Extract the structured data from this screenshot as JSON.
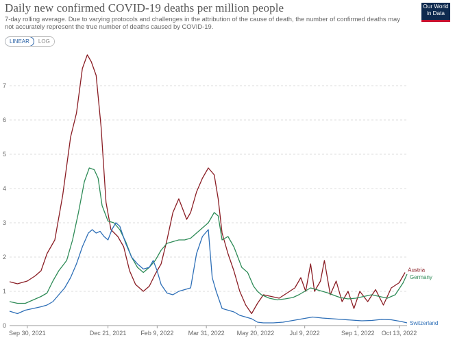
{
  "header": {
    "title": "Daily new confirmed COVID-19 deaths per million people",
    "subtitle": "7-day rolling average. Due to varying protocols and challenges in the attribution of the cause of death, the number of confirmed deaths may not accurately represent the true number of deaths caused by COVID-19.",
    "logo_line1": "Our World",
    "logo_line2": "in Data"
  },
  "controls": {
    "linear_label": "LINEAR",
    "log_label": "LOG",
    "active": "LINEAR"
  },
  "chart_data": {
    "type": "line",
    "title": "Daily new confirmed COVID-19 deaths per million people",
    "xlabel": "",
    "ylabel": "",
    "ylim": [
      0,
      8
    ],
    "yticks": [
      0,
      1,
      2,
      3,
      4,
      5,
      6,
      7
    ],
    "xticks": [
      "Sep 30, 2021",
      "Dec 21, 2021",
      "Feb 9, 2022",
      "Mar 31, 2022",
      "May 20, 2022",
      "Jul 9, 2022",
      "Sep 1, 2022",
      "Oct 13, 2022"
    ],
    "xtick_days": [
      0,
      82,
      132,
      182,
      232,
      282,
      336,
      378
    ],
    "xlim": [
      -18,
      386
    ],
    "grid": "horizontal dashed",
    "series": [
      {
        "name": "Austria",
        "color": "#8a1d24",
        "points": [
          [
            -18,
            1.28
          ],
          [
            -10,
            1.22
          ],
          [
            0,
            1.3
          ],
          [
            8,
            1.45
          ],
          [
            14,
            1.6
          ],
          [
            20,
            2.1
          ],
          [
            28,
            2.5
          ],
          [
            36,
            3.8
          ],
          [
            44,
            5.5
          ],
          [
            50,
            6.2
          ],
          [
            56,
            7.5
          ],
          [
            61,
            7.9
          ],
          [
            65,
            7.7
          ],
          [
            70,
            7.3
          ],
          [
            75,
            5.8
          ],
          [
            80,
            3.6
          ],
          [
            85,
            2.8
          ],
          [
            92,
            2.6
          ],
          [
            98,
            2.3
          ],
          [
            104,
            1.6
          ],
          [
            110,
            1.2
          ],
          [
            118,
            1.0
          ],
          [
            124,
            1.15
          ],
          [
            130,
            1.5
          ],
          [
            136,
            1.8
          ],
          [
            142,
            2.5
          ],
          [
            148,
            3.3
          ],
          [
            154,
            3.7
          ],
          [
            158,
            3.4
          ],
          [
            162,
            3.1
          ],
          [
            166,
            3.3
          ],
          [
            172,
            3.9
          ],
          [
            178,
            4.3
          ],
          [
            184,
            4.6
          ],
          [
            190,
            4.4
          ],
          [
            194,
            3.7
          ],
          [
            198,
            2.7
          ],
          [
            204,
            2.1
          ],
          [
            210,
            1.6
          ],
          [
            216,
            1.0
          ],
          [
            222,
            0.6
          ],
          [
            228,
            0.35
          ],
          [
            234,
            0.65
          ],
          [
            240,
            0.9
          ],
          [
            248,
            0.85
          ],
          [
            256,
            0.8
          ],
          [
            264,
            0.95
          ],
          [
            272,
            1.1
          ],
          [
            278,
            1.4
          ],
          [
            283,
            1.0
          ],
          [
            288,
            1.8
          ],
          [
            292,
            1.0
          ],
          [
            298,
            1.3
          ],
          [
            302,
            1.9
          ],
          [
            308,
            0.9
          ],
          [
            314,
            1.3
          ],
          [
            320,
            0.7
          ],
          [
            326,
            1.0
          ],
          [
            332,
            0.5
          ],
          [
            338,
            1.0
          ],
          [
            346,
            0.7
          ],
          [
            354,
            1.05
          ],
          [
            362,
            0.6
          ],
          [
            370,
            1.1
          ],
          [
            378,
            1.25
          ],
          [
            384,
            1.55
          ]
        ]
      },
      {
        "name": "Germany",
        "color": "#2e8b57",
        "points": [
          [
            -18,
            0.7
          ],
          [
            -10,
            0.65
          ],
          [
            -2,
            0.65
          ],
          [
            6,
            0.75
          ],
          [
            14,
            0.85
          ],
          [
            20,
            0.95
          ],
          [
            26,
            1.3
          ],
          [
            32,
            1.6
          ],
          [
            40,
            1.9
          ],
          [
            46,
            2.5
          ],
          [
            52,
            3.3
          ],
          [
            58,
            4.2
          ],
          [
            63,
            4.6
          ],
          [
            68,
            4.55
          ],
          [
            72,
            4.3
          ],
          [
            76,
            3.5
          ],
          [
            82,
            3.05
          ],
          [
            88,
            3.0
          ],
          [
            94,
            2.8
          ],
          [
            100,
            2.45
          ],
          [
            106,
            2.0
          ],
          [
            112,
            1.7
          ],
          [
            118,
            1.55
          ],
          [
            124,
            1.7
          ],
          [
            130,
            1.9
          ],
          [
            136,
            2.2
          ],
          [
            142,
            2.4
          ],
          [
            148,
            2.45
          ],
          [
            154,
            2.5
          ],
          [
            160,
            2.5
          ],
          [
            166,
            2.55
          ],
          [
            172,
            2.7
          ],
          [
            178,
            2.85
          ],
          [
            184,
            3.0
          ],
          [
            190,
            3.3
          ],
          [
            194,
            3.2
          ],
          [
            198,
            2.5
          ],
          [
            204,
            2.6
          ],
          [
            210,
            2.3
          ],
          [
            214,
            2.0
          ],
          [
            218,
            1.7
          ],
          [
            224,
            1.55
          ],
          [
            230,
            1.15
          ],
          [
            234,
            1.0
          ],
          [
            238,
            0.9
          ],
          [
            246,
            0.8
          ],
          [
            254,
            0.75
          ],
          [
            262,
            0.78
          ],
          [
            270,
            0.82
          ],
          [
            276,
            0.9
          ],
          [
            282,
            1.0
          ],
          [
            288,
            1.1
          ],
          [
            294,
            1.05
          ],
          [
            300,
            1.0
          ],
          [
            306,
            0.95
          ],
          [
            312,
            0.88
          ],
          [
            318,
            0.82
          ],
          [
            326,
            0.78
          ],
          [
            334,
            0.8
          ],
          [
            342,
            0.85
          ],
          [
            350,
            0.9
          ],
          [
            358,
            0.85
          ],
          [
            366,
            0.8
          ],
          [
            374,
            0.9
          ],
          [
            382,
            1.25
          ],
          [
            386,
            1.5
          ]
        ]
      },
      {
        "name": "Switzerland",
        "color": "#2e6fb7",
        "points": [
          [
            -18,
            0.42
          ],
          [
            -10,
            0.35
          ],
          [
            -2,
            0.45
          ],
          [
            6,
            0.5
          ],
          [
            14,
            0.55
          ],
          [
            20,
            0.6
          ],
          [
            26,
            0.7
          ],
          [
            32,
            0.9
          ],
          [
            38,
            1.1
          ],
          [
            44,
            1.4
          ],
          [
            50,
            1.8
          ],
          [
            56,
            2.3
          ],
          [
            62,
            2.7
          ],
          [
            66,
            2.8
          ],
          [
            70,
            2.7
          ],
          [
            74,
            2.75
          ],
          [
            78,
            2.6
          ],
          [
            82,
            2.5
          ],
          [
            86,
            2.8
          ],
          [
            90,
            3.0
          ],
          [
            94,
            2.9
          ],
          [
            100,
            2.4
          ],
          [
            106,
            2.0
          ],
          [
            112,
            1.8
          ],
          [
            118,
            1.65
          ],
          [
            124,
            1.7
          ],
          [
            128,
            1.9
          ],
          [
            132,
            1.6
          ],
          [
            136,
            1.2
          ],
          [
            142,
            0.95
          ],
          [
            148,
            0.9
          ],
          [
            154,
            1.0
          ],
          [
            160,
            1.05
          ],
          [
            166,
            1.1
          ],
          [
            172,
            2.1
          ],
          [
            178,
            2.6
          ],
          [
            184,
            2.8
          ],
          [
            188,
            1.4
          ],
          [
            192,
            1.0
          ],
          [
            198,
            0.5
          ],
          [
            204,
            0.45
          ],
          [
            210,
            0.4
          ],
          [
            216,
            0.3
          ],
          [
            222,
            0.25
          ],
          [
            228,
            0.2
          ],
          [
            234,
            0.1
          ],
          [
            240,
            0.08
          ],
          [
            250,
            0.08
          ],
          [
            260,
            0.1
          ],
          [
            270,
            0.15
          ],
          [
            280,
            0.2
          ],
          [
            290,
            0.25
          ],
          [
            300,
            0.22
          ],
          [
            310,
            0.2
          ],
          [
            320,
            0.18
          ],
          [
            330,
            0.16
          ],
          [
            340,
            0.14
          ],
          [
            350,
            0.15
          ],
          [
            360,
            0.18
          ],
          [
            370,
            0.17
          ],
          [
            380,
            0.12
          ],
          [
            386,
            0.08
          ]
        ]
      }
    ]
  }
}
